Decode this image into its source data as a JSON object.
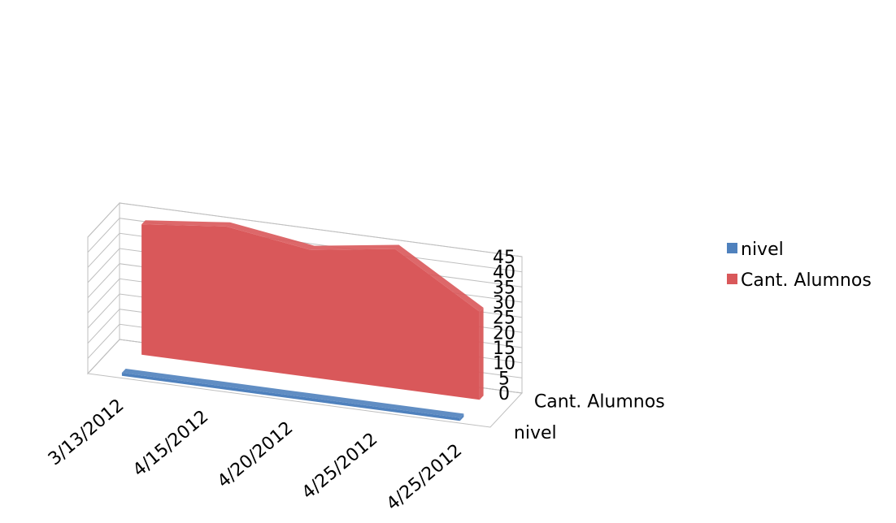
{
  "chart_data": {
    "type": "area",
    "view": "3d",
    "categories": [
      "3/13/2012",
      "4/15/2012",
      "4/20/2012",
      "4/25/2012",
      "4/25/2012"
    ],
    "series": [
      {
        "name": "nivel",
        "values": [
          1,
          1,
          1,
          1,
          1
        ],
        "color": "#4f81bd"
      },
      {
        "name": "Cant. Alumnos",
        "values": [
          43,
          46,
          42,
          46,
          29
        ],
        "color": "#d9585a"
      }
    ],
    "depth_labels": [
      "Cant. Alumnos",
      "nivel"
    ],
    "ylim": [
      0,
      45
    ],
    "yticks": [
      0,
      5,
      10,
      15,
      20,
      25,
      30,
      35,
      40,
      45
    ],
    "grid": true,
    "legend_position": "right",
    "title": "",
    "xlabel": "",
    "ylabel": ""
  }
}
